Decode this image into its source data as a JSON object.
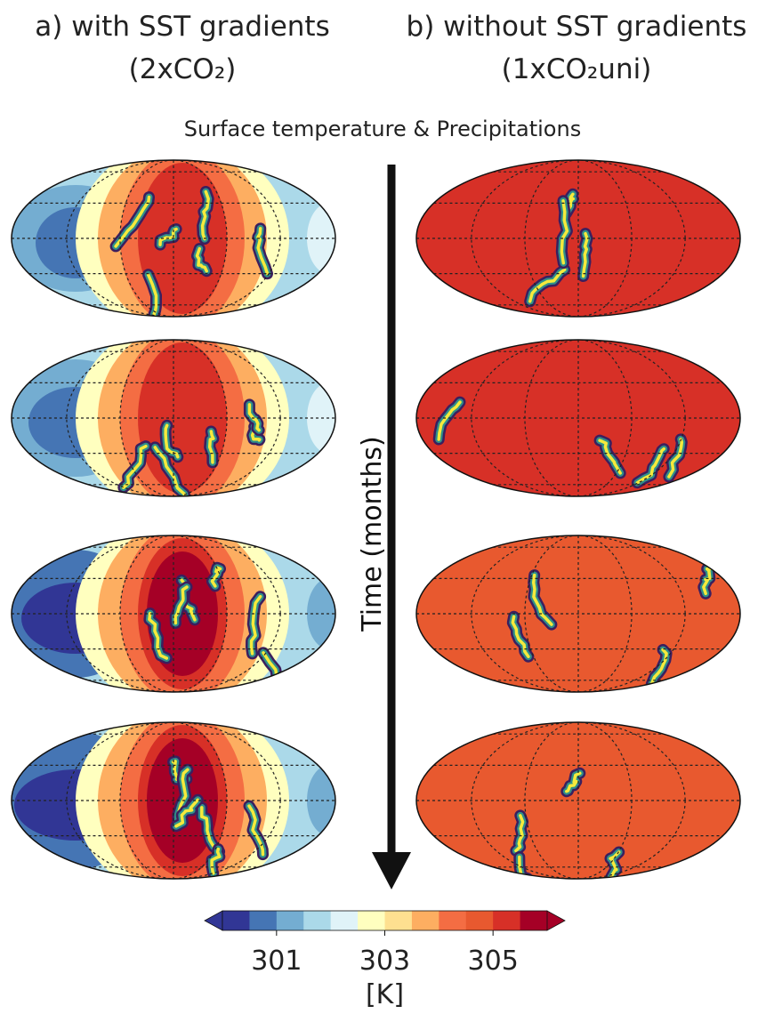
{
  "header": {
    "left_title": "a) with SST gradients",
    "left_subtitle": "(2xCO₂)",
    "right_title": "b) without SST gradients",
    "right_subtitle": "(1xCO₂uni)",
    "caption": "Surface  temperature & Precipitations"
  },
  "arrow_label": "Time (months)",
  "colorbar": {
    "range": [
      300,
      306
    ],
    "ticks": [
      301,
      303,
      305
    ],
    "label": "[K]",
    "colors": [
      "#313695",
      "#4575b4",
      "#74add1",
      "#abd9e9",
      "#e0f3f8",
      "#ffffbf",
      "#fee090",
      "#fdae61",
      "#f46d43",
      "#e8592f",
      "#d73027",
      "#a50026"
    ]
  }
}
